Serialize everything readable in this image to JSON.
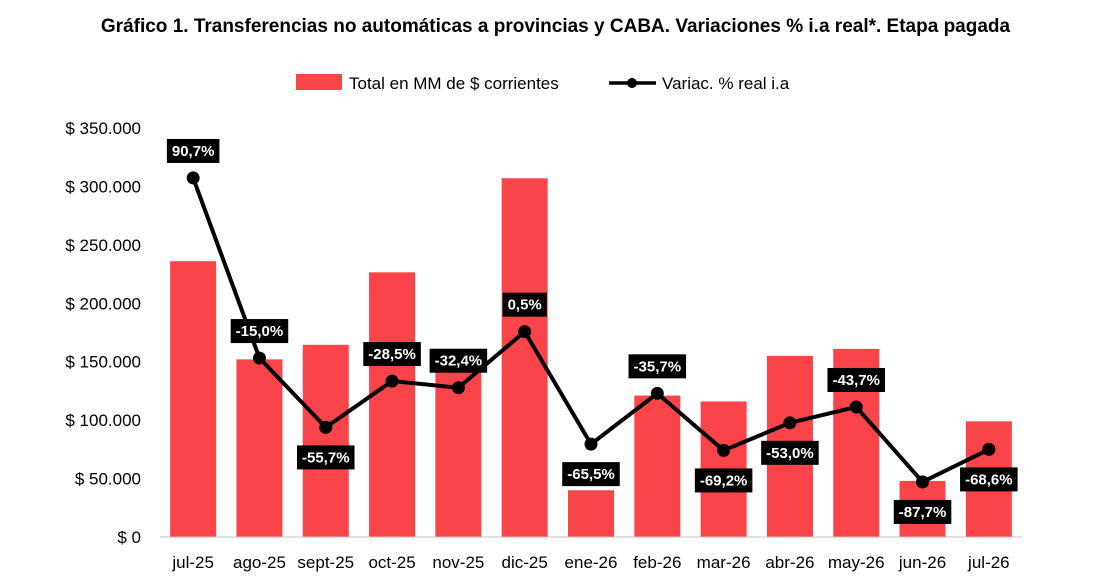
{
  "title": "Gráfico 1. Transferencias no automáticas a provincias y CABA. Variaciones % i.a real*. Etapa pagada",
  "chart_data": {
    "type": "bar",
    "categories": [
      "jul-25",
      "ago-25",
      "sept-25",
      "oct-25",
      "nov-25",
      "dic-25",
      "ene-26",
      "feb-26",
      "mar-26",
      "abr-26",
      "may-26",
      "jun-26",
      "jul-26"
    ],
    "series": [
      {
        "name": "Total en MM de $ corrientes",
        "type": "bar",
        "axis": "left",
        "color": "#f94449",
        "values": [
          236000,
          152000,
          164500,
          226500,
          156000,
          307000,
          40000,
          121000,
          116000,
          155000,
          161000,
          48000,
          99000
        ]
      },
      {
        "name": "Variac. % real i.a",
        "type": "line",
        "axis": "right",
        "color": "#000000",
        "values": [
          90.7,
          -15.0,
          -55.7,
          -28.5,
          -32.4,
          0.5,
          -65.5,
          -35.7,
          -69.2,
          -53.0,
          -43.7,
          -87.7,
          -68.6
        ],
        "labels": [
          "90,7%",
          "-15,0%",
          "-55,7%",
          "-28,5%",
          "-32,4%",
          "0,5%",
          "-65,5%",
          "-35,7%",
          "-69,2%",
          "-53,0%",
          "-43,7%",
          "-87,7%",
          "-68,6%"
        ]
      }
    ],
    "yaxis_left": {
      "ylim": [
        0,
        350000
      ],
      "ticks": [
        0,
        50000,
        100000,
        150000,
        200000,
        250000,
        300000,
        350000
      ],
      "tick_labels": [
        "$ 0",
        "$ 50.000",
        "$ 100.000",
        "$ 150.000",
        "$ 200.000",
        "$ 250.000",
        "$ 300.000",
        "$ 350.000"
      ]
    },
    "yaxis_right": {
      "ylim": [
        -120,
        120
      ],
      "visible": false
    },
    "grid": false,
    "legend_position": "top"
  }
}
